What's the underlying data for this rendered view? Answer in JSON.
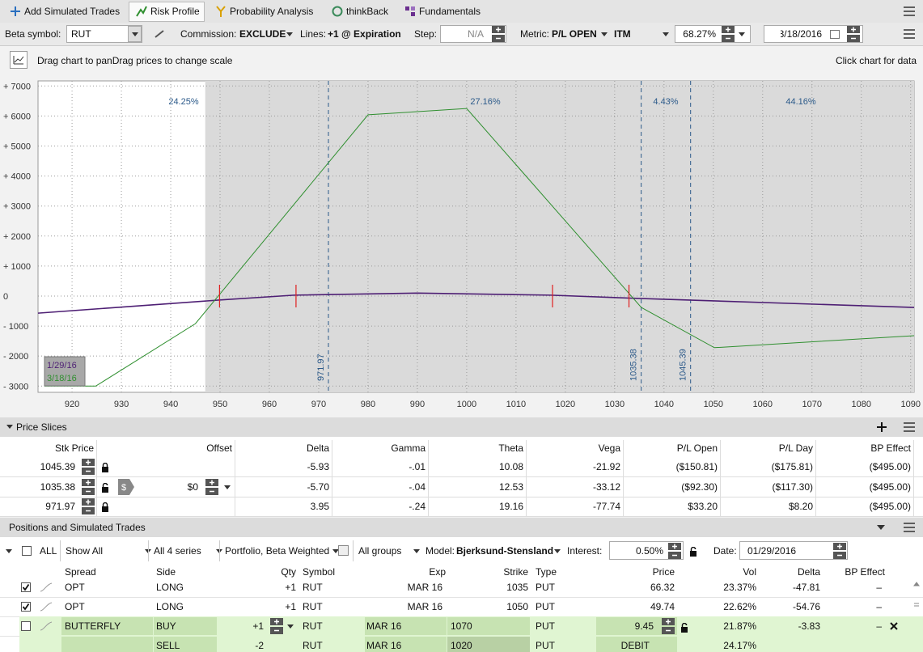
{
  "tabs": [
    "Add Simulated Trades",
    "Risk Profile",
    "Probability Analysis",
    "thinkBack",
    "Fundamentals"
  ],
  "toolbar": {
    "beta_label": "Beta symbol:",
    "beta_symbol": "RUT",
    "commission_label": "Commission:",
    "commission": "EXCLUDE",
    "lines_label": "Lines:",
    "lines": "+1 @ Expiration",
    "step_label": "Step:",
    "step": "N/A",
    "metric_label": "Metric:",
    "metric": "P/L OPEN",
    "itm": "ITM",
    "probability": "68.27%",
    "date": "03/18/2016"
  },
  "chart_hint": "Drag chart to panDrag prices to change scale",
  "chart_click": "Click chart for data",
  "chart": {
    "type": "line",
    "xlim": [
      913.1,
      1090.7
    ],
    "ylim": [
      -3208,
      7170
    ],
    "xticks": [
      920,
      930,
      940,
      950,
      960,
      970,
      980,
      990,
      1000,
      1010,
      1020,
      1030,
      1040,
      1050,
      1060,
      1070,
      1080,
      1090
    ],
    "yticks": [
      {
        "value": 7000,
        "label": "+ 7000"
      },
      {
        "value": 6000,
        "label": "+ 6000"
      },
      {
        "value": 5000,
        "label": "+ 5000"
      },
      {
        "value": 4000,
        "label": "+ 4000"
      },
      {
        "value": 3000,
        "label": "+ 3000"
      },
      {
        "value": 2000,
        "label": "+ 2000"
      },
      {
        "value": 1000,
        "label": "+ 1000"
      },
      0,
      {
        "value": -1000,
        "label": "- 1000"
      },
      {
        "value": -2000,
        "label": "- 2000"
      },
      {
        "value": -3000,
        "label": "- 3000"
      }
    ],
    "grid": true,
    "shade_from": 947,
    "slice_lines": [
      971.97,
      1035.38,
      1045.39
    ],
    "markers": [
      949.9,
      965.4,
      1017.4,
      1032.9
    ],
    "zone_labels": [
      "24.25%",
      "27.16%",
      "4.43%",
      "44.16%"
    ],
    "series": [
      {
        "name": "1/29/16",
        "color": "#4e1f74",
        "x": [
          913.1,
          950,
          965,
          990,
          1017,
          1035,
          1090.7
        ],
        "values": [
          -570,
          -130,
          30,
          100,
          30,
          -80,
          -380
        ]
      },
      {
        "name": "3/18/16",
        "color": "#2f8f2f",
        "x": [
          914.4,
          924.8,
          945,
          980,
          1000,
          1035.4,
          1050.2,
          1090.7
        ],
        "values": [
          -3000,
          -3000,
          -920,
          6040,
          6250,
          -380,
          -1720,
          -1320
        ]
      }
    ]
  },
  "price_slices": {
    "title": "Price Slices",
    "columns": [
      "Stk Price",
      "Offset",
      "Delta",
      "Gamma",
      "Theta",
      "Vega",
      "P/L Open",
      "P/L Day",
      "BP Effect"
    ],
    "rows": [
      {
        "cells": [
          "1045.39",
          "-5.93",
          "-.01",
          "10.08",
          "-21.92",
          "($150.81)",
          "($175.81)",
          "($495.00)"
        ]
      },
      {
        "cells": [
          "1035.38",
          "-5.70",
          "-.04",
          "12.53",
          "-33.12",
          "($92.30)",
          "($117.30)",
          "($495.00)"
        ],
        "offset": "$0"
      },
      {
        "cells": [
          "971.97",
          "3.95",
          "-.24",
          "19.16",
          "-77.74",
          "$33.20",
          "$8.20",
          "($495.00)"
        ]
      }
    ]
  },
  "positions": {
    "title": "Positions and Simulated Trades",
    "filters": {
      "all": "ALL",
      "show": "Show All",
      "series": "All 4 series",
      "portfolio": "Portfolio, Beta Weighted",
      "groups": "All groups",
      "model_label": "Model:",
      "model": "Bjerksund-Stensland",
      "interest_label": "Interest:",
      "interest": "0.50%",
      "date_label": "Date:",
      "date": "01/29/2016"
    },
    "columns": [
      "Spread",
      "Side",
      "Qty",
      "Symbol",
      "Exp",
      "Strike",
      "Type",
      "Price",
      "Vol",
      "Delta",
      "BP Effect"
    ],
    "rows": [
      {
        "checked": true,
        "spread": "OPT",
        "side": "LONG",
        "qty": "+1",
        "symbol": "RUT",
        "exp": "MAR 16",
        "strike": "1035",
        "type": "PUT",
        "price": "66.32",
        "vol": "23.37%",
        "delta": "-47.81",
        "bp": "–"
      },
      {
        "checked": true,
        "spread": "OPT",
        "side": "LONG",
        "qty": "+1",
        "symbol": "RUT",
        "exp": "MAR 16",
        "strike": "1050",
        "type": "PUT",
        "price": "49.74",
        "vol": "22.62%",
        "delta": "-54.76",
        "bp": "–"
      },
      {
        "checked": false,
        "spread": "BUTTERFLY",
        "side": "BUY",
        "qty": "+1",
        "symbol": "RUT",
        "exp": "MAR 16",
        "strike": "1070",
        "type": "PUT",
        "price": "9.45",
        "vol": "21.87%",
        "delta": "-3.83",
        "bp": "–"
      },
      {
        "side": "SELL",
        "qty": "-2",
        "symbol": "RUT",
        "exp": "MAR 16",
        "strike": "1020",
        "type": "PUT",
        "price": "DEBIT",
        "vol": "24.17%"
      }
    ]
  }
}
